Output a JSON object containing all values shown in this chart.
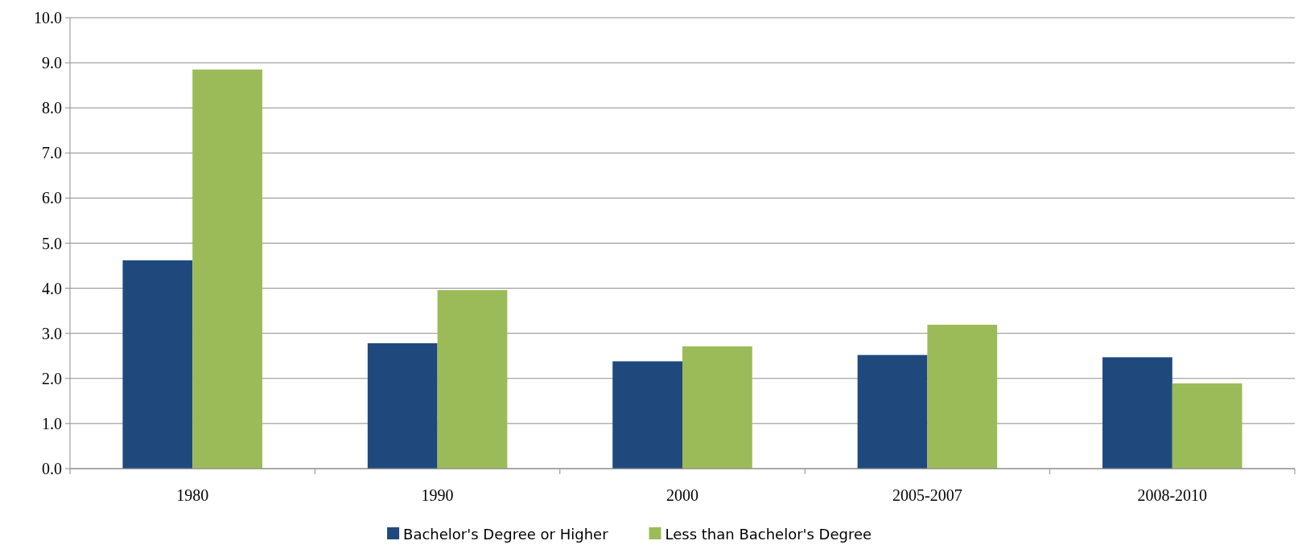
{
  "chart_data": {
    "type": "bar",
    "categories": [
      "1980",
      "1990",
      "2000",
      "2005-2007",
      "2008-2010"
    ],
    "series": [
      {
        "name": "Bachelor's Degree or Higher",
        "color": "#1f497d",
        "values": [
          4.62,
          2.78,
          2.38,
          2.52,
          2.47
        ]
      },
      {
        "name": "Less than Bachelor's Degree",
        "color": "#9bbb59",
        "values": [
          8.85,
          3.96,
          2.71,
          3.19,
          1.89
        ]
      }
    ],
    "ylim": [
      0,
      10
    ],
    "yticks": [
      {
        "value": 0,
        "label": "0.0"
      },
      {
        "value": 1,
        "label": "1.0"
      },
      {
        "value": 2,
        "label": "2.0"
      },
      {
        "value": 3,
        "label": "3.0"
      },
      {
        "value": 4,
        "label": "4.0"
      },
      {
        "value": 5,
        "label": "5.0"
      },
      {
        "value": 6,
        "label": "6.0"
      },
      {
        "value": 7,
        "label": "7.0"
      },
      {
        "value": 8,
        "label": "8.0"
      },
      {
        "value": 9,
        "label": "9.0"
      },
      {
        "value": 10,
        "label": "10.0"
      }
    ],
    "grid": "y",
    "legend": "bottom"
  }
}
